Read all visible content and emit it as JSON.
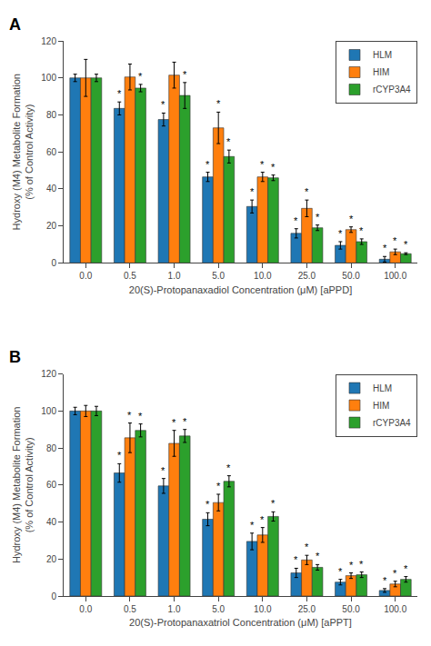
{
  "chart_data": [
    {
      "type": "bar",
      "title": "A",
      "xlabel": "20(S)-Protopanaxadiol Concentration (μM) [aPPD]",
      "ylabel": "Hydroxy (M4) Metabolite Formation\n(% of Control Activity)",
      "categories": [
        "0.0",
        "0.5",
        "1.0",
        "5.0",
        "10.0",
        "25.0",
        "50.0",
        "100.0"
      ],
      "series": [
        {
          "name": "HLM",
          "values": [
            100.0,
            83.5,
            77.5,
            46.5,
            30.5,
            16.0,
            9.5,
            2.0
          ],
          "errors": [
            2.0,
            3.5,
            3.5,
            2.5,
            3.5,
            2.5,
            2.0,
            1.5
          ],
          "significance": [
            null,
            "*",
            "*",
            "*",
            "*",
            "*",
            "*",
            "*"
          ]
        },
        {
          "name": "HIM",
          "values": [
            100.0,
            100.5,
            101.5,
            73.0,
            46.5,
            29.5,
            18.0,
            6.0
          ],
          "errors": [
            10.0,
            7.0,
            7.0,
            8.5,
            2.5,
            4.5,
            1.5,
            1.5
          ],
          "significance": [
            null,
            null,
            null,
            "*",
            "*",
            "*",
            "*",
            "*"
          ]
        },
        {
          "name": "rCYP3A4",
          "values": [
            100.0,
            94.5,
            90.5,
            57.5,
            46.0,
            19.0,
            11.5,
            5.0
          ],
          "errors": [
            2.0,
            2.0,
            7.0,
            3.5,
            1.5,
            1.5,
            1.5,
            0.5
          ],
          "significance": [
            null,
            "*",
            "*",
            "*",
            "*",
            "*",
            "*",
            "*"
          ]
        }
      ],
      "ylim": [
        0,
        120
      ],
      "yticks": [
        0,
        20,
        40,
        60,
        80,
        100,
        120
      ],
      "grid": false,
      "legend": "upper right"
    },
    {
      "type": "bar",
      "title": "B",
      "xlabel": "20(S)-Protopanaxatriol Concentration (μM) [aPPT]",
      "ylabel": "Hydroxy (M4) Metabolite Formation\n(% of Control Activity)",
      "categories": [
        "0.0",
        "0.5",
        "1.0",
        "5.0",
        "10.0",
        "25.0",
        "50.0",
        "100.0"
      ],
      "series": [
        {
          "name": "HLM",
          "values": [
            100.0,
            66.5,
            59.5,
            41.5,
            29.5,
            12.5,
            7.5,
            3.0
          ],
          "errors": [
            2.0,
            5.0,
            4.0,
            3.5,
            4.5,
            2.5,
            1.5,
            1.0
          ],
          "significance": [
            null,
            "*",
            "*",
            "*",
            "*",
            "*",
            "*",
            "*"
          ]
        },
        {
          "name": "HIM",
          "values": [
            100.0,
            85.5,
            82.5,
            50.5,
            33.0,
            19.5,
            11.0,
            6.5
          ],
          "errors": [
            3.0,
            8.0,
            7.0,
            4.5,
            4.0,
            2.5,
            1.5,
            1.5
          ],
          "significance": [
            null,
            "*",
            "*",
            "*",
            "*",
            "*",
            "*",
            "*"
          ]
        },
        {
          "name": "rCYP3A4",
          "values": [
            100.0,
            89.5,
            86.5,
            62.0,
            43.0,
            15.5,
            11.5,
            9.0
          ],
          "errors": [
            2.5,
            3.5,
            3.5,
            3.0,
            2.5,
            1.5,
            1.5,
            1.5
          ],
          "significance": [
            null,
            "*",
            "*",
            "*",
            "*",
            "*",
            "*",
            "*"
          ]
        }
      ],
      "ylim": [
        0,
        120
      ],
      "yticks": [
        0,
        20,
        40,
        60,
        80,
        100,
        120
      ],
      "grid": false,
      "legend": "upper right"
    }
  ]
}
